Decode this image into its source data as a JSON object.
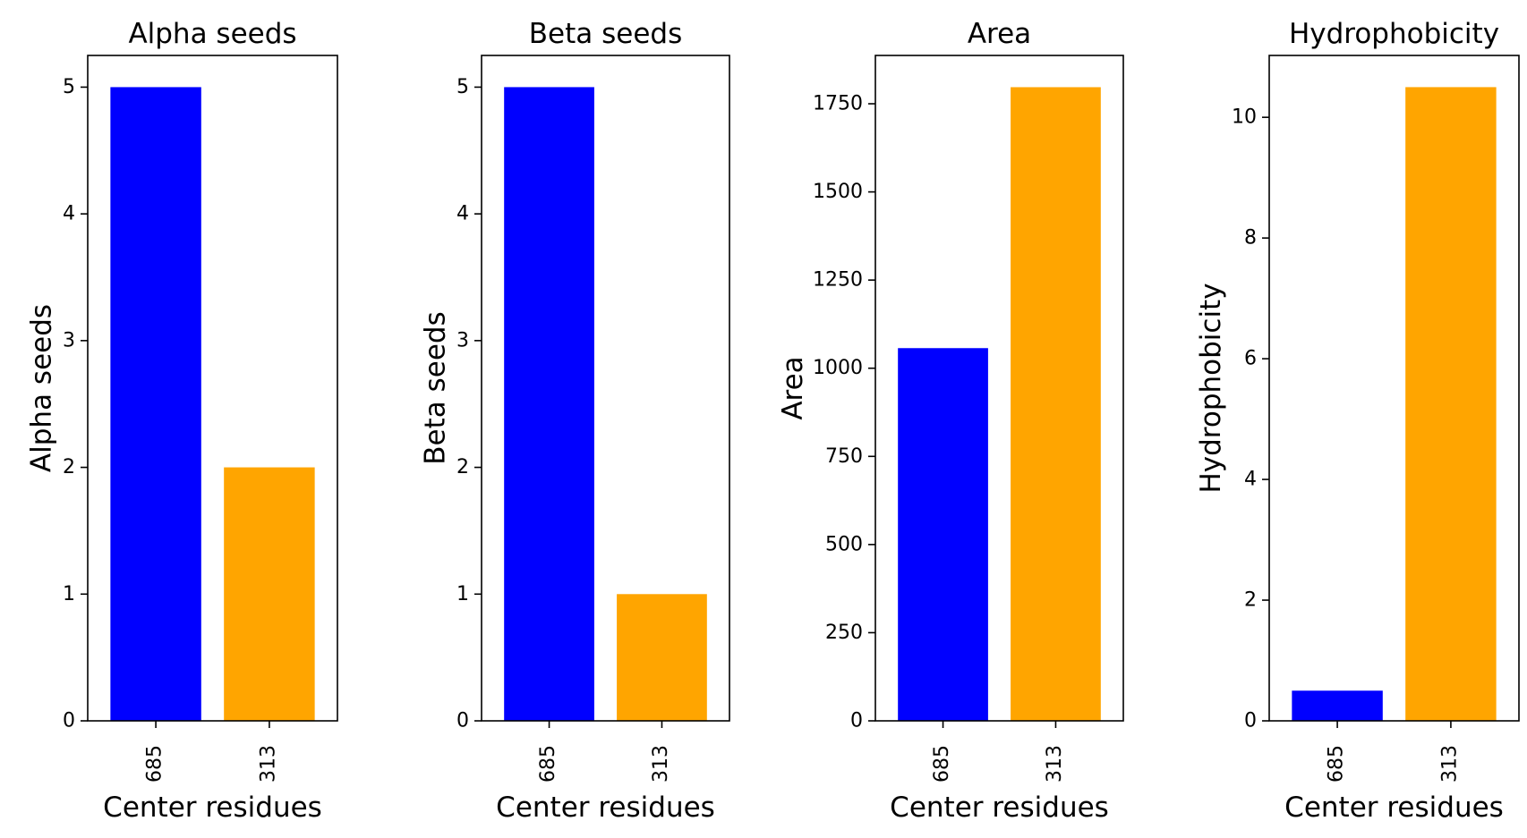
{
  "chart_data": [
    {
      "type": "bar",
      "title": "Alpha seeds",
      "xlabel": "Center residues",
      "ylabel": "Alpha seeds",
      "categories": [
        "685",
        "313"
      ],
      "values": [
        5,
        2
      ],
      "colors": [
        "#0000ff",
        "#ffa500"
      ],
      "ylim": [
        0,
        5.25
      ],
      "yticks": [
        0,
        1,
        2,
        3,
        4,
        5
      ],
      "grid": false
    },
    {
      "type": "bar",
      "title": "Beta seeds",
      "xlabel": "Center residues",
      "ylabel": "Beta seeds",
      "categories": [
        "685",
        "313"
      ],
      "values": [
        5,
        1
      ],
      "colors": [
        "#0000ff",
        "#ffa500"
      ],
      "ylim": [
        0,
        5.25
      ],
      "yticks": [
        0,
        1,
        2,
        3,
        4,
        5
      ],
      "grid": false
    },
    {
      "type": "bar",
      "title": "Area",
      "xlabel": "Center residues",
      "ylabel": "Area",
      "categories": [
        "685",
        "313"
      ],
      "values": [
        1057,
        1797
      ],
      "colors": [
        "#0000ff",
        "#ffa500"
      ],
      "ylim": [
        0,
        1887
      ],
      "yticks": [
        0,
        250,
        500,
        750,
        1000,
        1250,
        1500,
        1750
      ],
      "grid": false
    },
    {
      "type": "bar",
      "title": "Hydrophobicity",
      "xlabel": "Center residues",
      "ylabel": "Hydrophobicity",
      "categories": [
        "685",
        "313"
      ],
      "values": [
        0.5,
        10.5
      ],
      "colors": [
        "#0000ff",
        "#ffa500"
      ],
      "ylim": [
        0,
        11.025
      ],
      "yticks": [
        0,
        2,
        4,
        6,
        8,
        10
      ],
      "grid": false
    }
  ]
}
